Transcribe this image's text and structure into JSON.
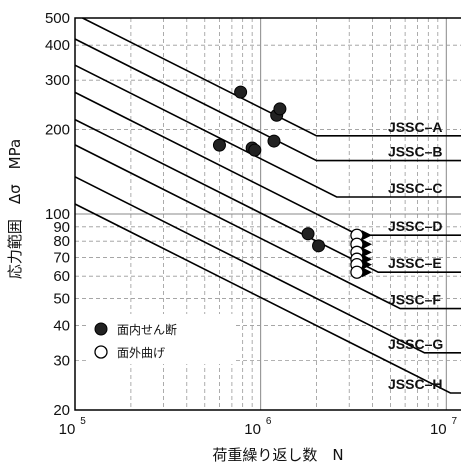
{
  "chart_data": {
    "type": "scatter",
    "title": "",
    "xlabel": "荷重繰り返し数　N",
    "ylabel": "応力範囲　Δσ　MPa",
    "x_scale": "log",
    "y_scale": "log",
    "xlim": [
      100000,
      12000000
    ],
    "ylim": [
      20,
      500
    ],
    "grid": true,
    "x_major_ticks": [
      {
        "value": 100000,
        "base": "10",
        "exp": "5"
      },
      {
        "value": 1000000,
        "base": "10",
        "exp": "6"
      },
      {
        "value": 10000000,
        "base": "10",
        "exp": "7"
      }
    ],
    "y_ticks": [
      {
        "value": 20,
        "label": "20"
      },
      {
        "value": 30,
        "label": "30"
      },
      {
        "value": 40,
        "label": "40"
      },
      {
        "value": 50,
        "label": "50"
      },
      {
        "value": 60,
        "label": "60"
      },
      {
        "value": 70,
        "label": "70"
      },
      {
        "value": 80,
        "label": "80"
      },
      {
        "value": 90,
        "label": "90"
      },
      {
        "value": 100,
        "label": "100"
      },
      {
        "value": 200,
        "label": "200"
      },
      {
        "value": 300,
        "label": "300"
      },
      {
        "value": 400,
        "label": "400"
      },
      {
        "value": 500,
        "label": "500"
      }
    ],
    "design_curves": [
      {
        "name": "JSSC–A",
        "ref_stress_2e6": 190,
        "cutoff": 190
      },
      {
        "name": "JSSC–B",
        "ref_stress_2e6": 155,
        "cutoff": 155
      },
      {
        "name": "JSSC–C",
        "ref_stress_2e6": 125,
        "cutoff": 115
      },
      {
        "name": "JSSC–D",
        "ref_stress_2e6": 100,
        "cutoff": 84
      },
      {
        "name": "JSSC–E",
        "ref_stress_2e6": 80,
        "cutoff": 62
      },
      {
        "name": "JSSC–F",
        "ref_stress_2e6": 65,
        "cutoff": 46
      },
      {
        "name": "JSSC–G",
        "ref_stress_2e6": 50,
        "cutoff": 32
      },
      {
        "name": "JSSC–H",
        "ref_stress_2e6": 40,
        "cutoff": 23
      }
    ],
    "series": [
      {
        "name": "面内せん断",
        "marker": "filled",
        "points": [
          {
            "x": 780000,
            "y": 272
          },
          {
            "x": 1220000,
            "y": 225
          },
          {
            "x": 1270000,
            "y": 237
          },
          {
            "x": 600000,
            "y": 176
          },
          {
            "x": 900000,
            "y": 172
          },
          {
            "x": 930000,
            "y": 169
          },
          {
            "x": 1180000,
            "y": 182
          },
          {
            "x": 1800000,
            "y": 85
          },
          {
            "x": 2050000,
            "y": 77
          }
        ]
      },
      {
        "name": "面外曲げ",
        "marker": "open",
        "runout": true,
        "points": [
          {
            "x": 3300000,
            "y": 84
          },
          {
            "x": 3300000,
            "y": 78
          },
          {
            "x": 3300000,
            "y": 73
          },
          {
            "x": 3300000,
            "y": 69
          },
          {
            "x": 3300000,
            "y": 66
          },
          {
            "x": 3300000,
            "y": 62
          }
        ]
      }
    ],
    "legend_position": "lower-left"
  }
}
